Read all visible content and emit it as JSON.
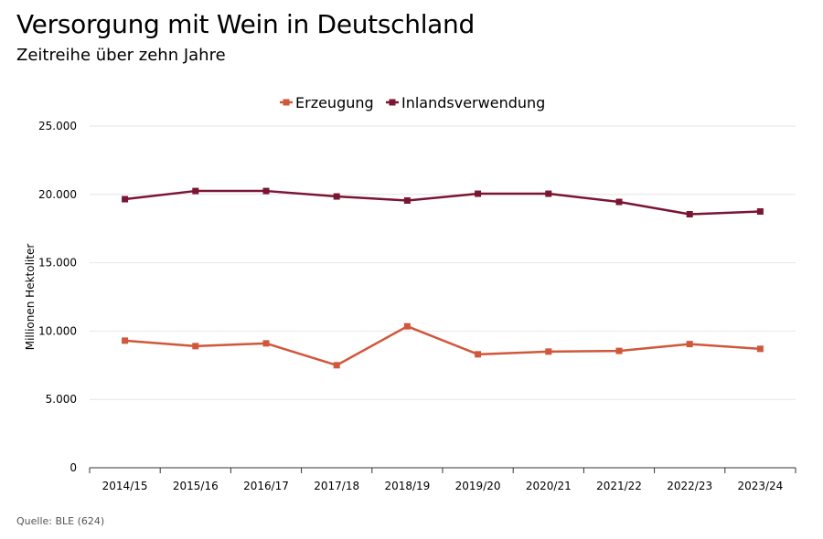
{
  "header": {
    "title": "Versorgung mit Wein in Deutschland",
    "subtitle": "Zeitreihe über zehn Jahre"
  },
  "footer": {
    "source": "Quelle: BLE (624)"
  },
  "chart_data": {
    "type": "line",
    "title": "Versorgung mit Wein in Deutschland",
    "subtitle": "Zeitreihe über zehn Jahre",
    "xlabel": "",
    "ylabel": "Millionen Hektoliter",
    "categories": [
      "2014/15",
      "2015/16",
      "2016/17",
      "2017/18",
      "2018/19",
      "2019/20",
      "2020/21",
      "2021/22",
      "2022/23",
      "2023/24"
    ],
    "ylim": [
      0,
      25000
    ],
    "yticks": [
      0,
      5000,
      10000,
      15000,
      20000,
      25000
    ],
    "ytick_labels": [
      "0",
      "5.000",
      "10.000",
      "15.000",
      "20.000",
      "25.000"
    ],
    "grid": true,
    "legend_position": "top-center",
    "series": [
      {
        "name": "Erzeugung",
        "color": "#d0573a",
        "values": [
          9300,
          8900,
          9100,
          7500,
          10350,
          8300,
          8500,
          8550,
          9050,
          8700
        ]
      },
      {
        "name": "Inlandsverwendung",
        "color": "#7a1533",
        "values": [
          19650,
          20250,
          20250,
          19850,
          19550,
          20050,
          20050,
          19450,
          18550,
          18750
        ]
      }
    ]
  }
}
